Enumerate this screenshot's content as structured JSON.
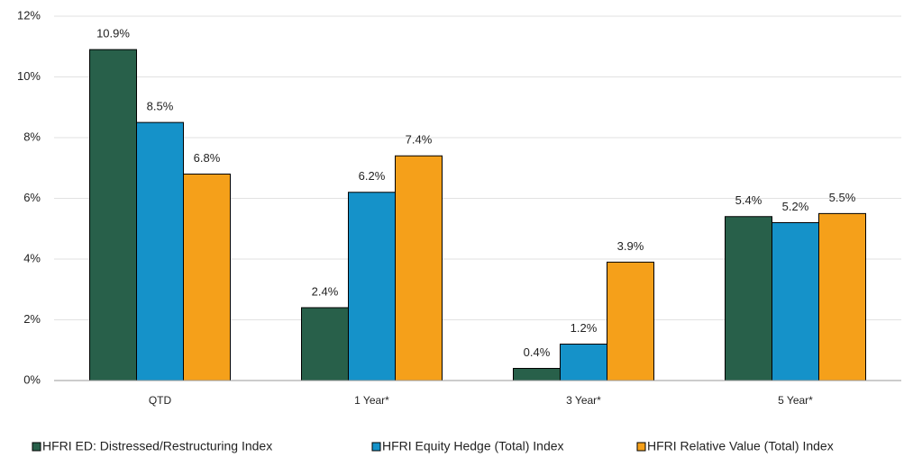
{
  "chart_data": {
    "type": "bar",
    "categories": [
      "QTD",
      "1 Year*",
      "3 Year*",
      "5 Year*"
    ],
    "series": [
      {
        "name": "HFRI ED: Distressed/Restructuring Index",
        "color": "#28604a",
        "values": [
          10.9,
          2.4,
          0.4,
          5.4
        ],
        "value_labels": [
          "10.9%",
          "2.4%",
          "0.4%",
          "5.4%"
        ]
      },
      {
        "name": "HFRI Equity Hedge (Total) Index",
        "color": "#1592c9",
        "values": [
          8.5,
          6.2,
          1.2,
          5.2
        ],
        "value_labels": [
          "8.5%",
          "6.2%",
          "1.2%",
          "5.2%"
        ]
      },
      {
        "name": "HFRI Relative Value (Total) Index",
        "color": "#f5a01a",
        "values": [
          6.8,
          7.4,
          3.9,
          5.5
        ],
        "value_labels": [
          "6.8%",
          "7.4%",
          "3.9%",
          "5.5%"
        ]
      }
    ],
    "ylim": [
      0,
      12
    ],
    "yticks": [
      {
        "value": 0,
        "label": "0%"
      },
      {
        "value": 2,
        "label": "2%"
      },
      {
        "value": 4,
        "label": "4%"
      },
      {
        "value": 6,
        "label": "6%"
      },
      {
        "value": 8,
        "label": "8%"
      },
      {
        "value": 10,
        "label": "10%"
      },
      {
        "value": 12,
        "label": "12%"
      }
    ],
    "grid": true,
    "legend": "bottom"
  }
}
